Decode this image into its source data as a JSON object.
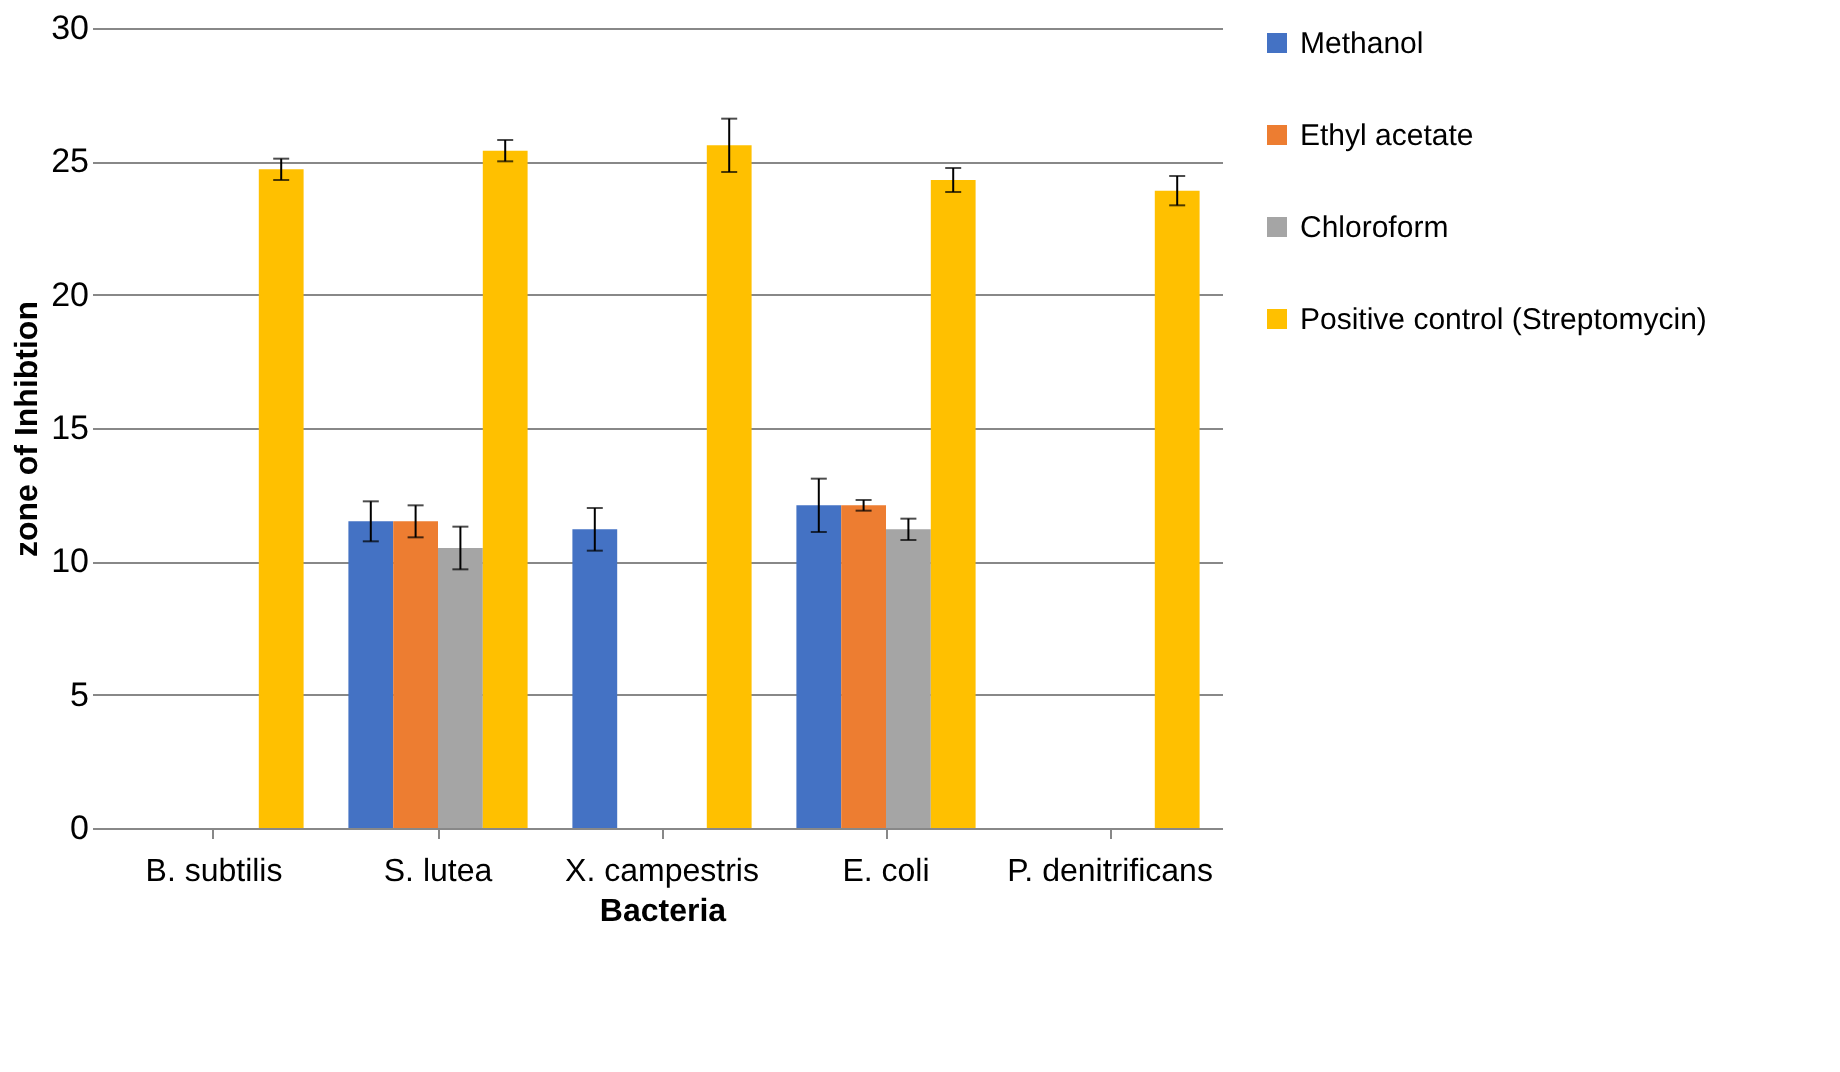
{
  "chart_data": {
    "type": "bar",
    "xlabel": "Bacteria",
    "ylabel": "zone of Inhibtion",
    "categories": [
      "B. subtilis",
      "S. lutea",
      "X. campestris",
      "E. coli",
      "P. denitrificans"
    ],
    "series": [
      {
        "name": "Methanol",
        "color": "#4472c4",
        "values": [
          0,
          11.5,
          11.2,
          12.1,
          0
        ],
        "errors": [
          null,
          0.75,
          0.8,
          1.0,
          null
        ]
      },
      {
        "name": "Ethyl acetate",
        "color": "#ed7d31",
        "values": [
          0,
          11.5,
          0,
          12.1,
          0
        ],
        "errors": [
          null,
          0.6,
          null,
          0.2,
          null
        ]
      },
      {
        "name": "Chloroform",
        "color": "#a5a5a5",
        "values": [
          0,
          10.5,
          0,
          11.2,
          0
        ],
        "errors": [
          null,
          0.8,
          null,
          0.4,
          null
        ]
      },
      {
        "name": "Positive control (Streptomycin)",
        "color": "#ffc000",
        "values": [
          24.7,
          25.4,
          25.6,
          24.3,
          23.9
        ],
        "errors": [
          0.4,
          0.4,
          1.0,
          0.45,
          0.55
        ]
      }
    ],
    "ylim": [
      0,
      30
    ],
    "yticks": [
      0,
      5,
      10,
      15,
      20,
      25,
      30
    ],
    "grid": "y",
    "legend": "right"
  }
}
